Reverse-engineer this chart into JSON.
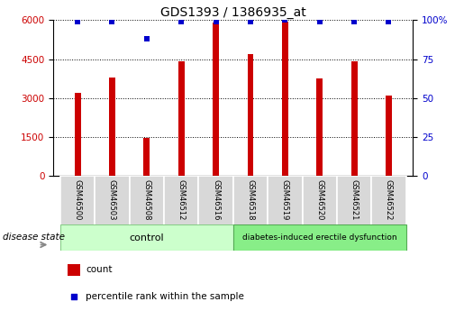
{
  "title": "GDS1393 / 1386935_at",
  "samples": [
    "GSM46500",
    "GSM46503",
    "GSM46508",
    "GSM46512",
    "GSM46516",
    "GSM46518",
    "GSM46519",
    "GSM46520",
    "GSM46521",
    "GSM46522"
  ],
  "counts": [
    3200,
    3800,
    1450,
    4400,
    5920,
    4700,
    5950,
    3750,
    4400,
    3100
  ],
  "percentiles": [
    99,
    99,
    88,
    99,
    99,
    99,
    100,
    99,
    99,
    99
  ],
  "group_labels": [
    "control",
    "diabetes-induced erectile dysfunction"
  ],
  "ctrl_color": "#ccffcc",
  "diab_color": "#88ee88",
  "bar_color": "#cc0000",
  "percentile_color": "#0000cc",
  "left_yticks": [
    0,
    1500,
    3000,
    4500,
    6000
  ],
  "right_yticks": [
    0,
    25,
    50,
    75,
    100
  ],
  "ylim_left": [
    0,
    6000
  ],
  "ylim_right": [
    0,
    100
  ],
  "disease_state_label": "disease state",
  "legend_count_label": "count",
  "legend_percentile_label": "percentile rank within the sample",
  "title_fontsize": 10,
  "tick_fontsize": 7.5,
  "label_fontsize": 7.5,
  "bar_width": 0.18
}
